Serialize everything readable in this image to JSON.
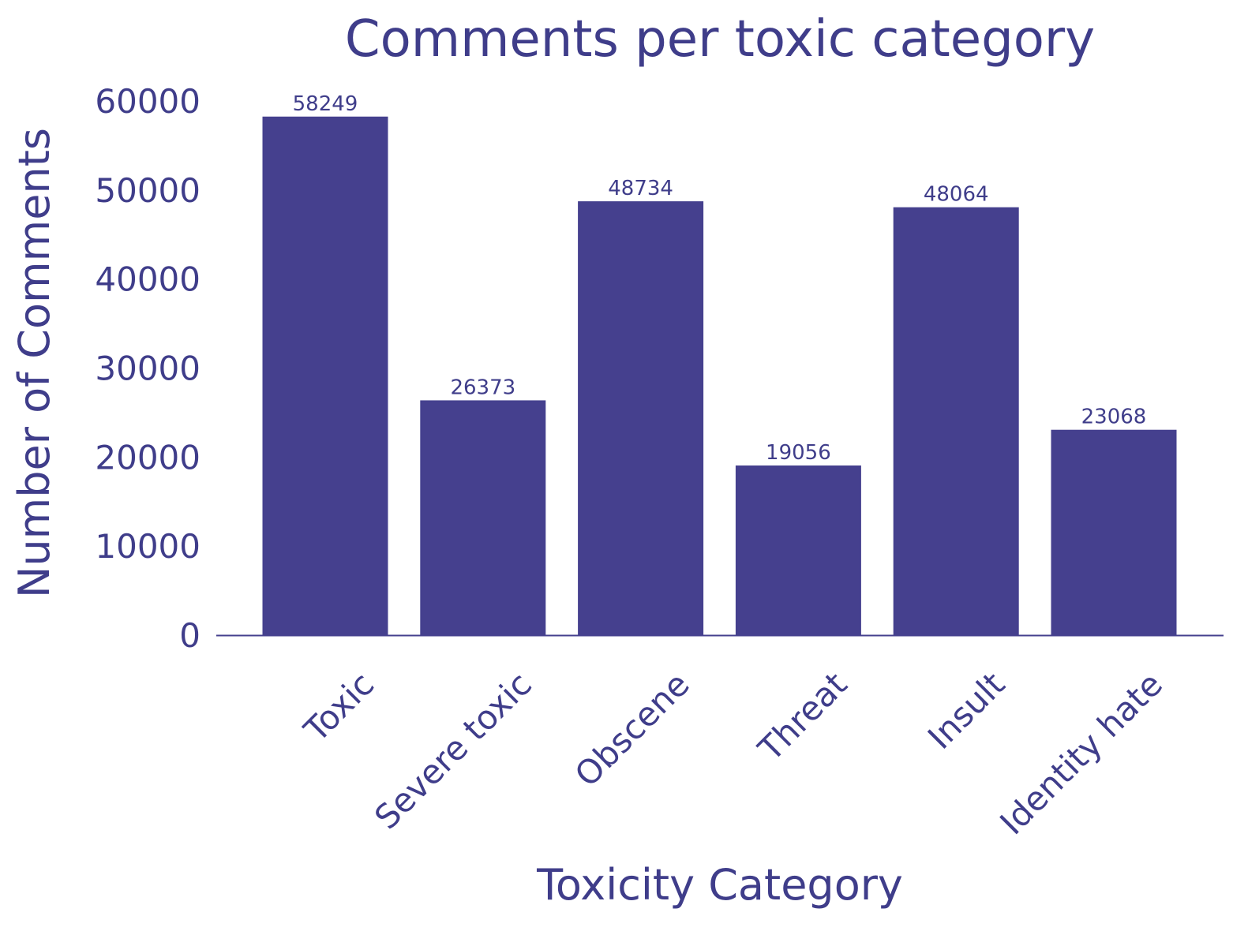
{
  "chart_data": {
    "type": "bar",
    "title": "Comments per toxic category",
    "xlabel": "Toxicity Category",
    "ylabel": "Number of Comments",
    "categories": [
      "Toxic",
      "Severe toxic",
      "Obscene",
      "Threat",
      "Insult",
      "Identity hate"
    ],
    "values": [
      58249,
      26373,
      48734,
      19056,
      48064,
      23068
    ],
    "ylim": [
      0,
      60000
    ],
    "yticks": [
      0,
      10000,
      20000,
      30000,
      40000,
      50000,
      60000
    ],
    "grid": false,
    "legend": "none",
    "colors": {
      "bar": "#45408e",
      "text": "#3f3d8a"
    }
  }
}
